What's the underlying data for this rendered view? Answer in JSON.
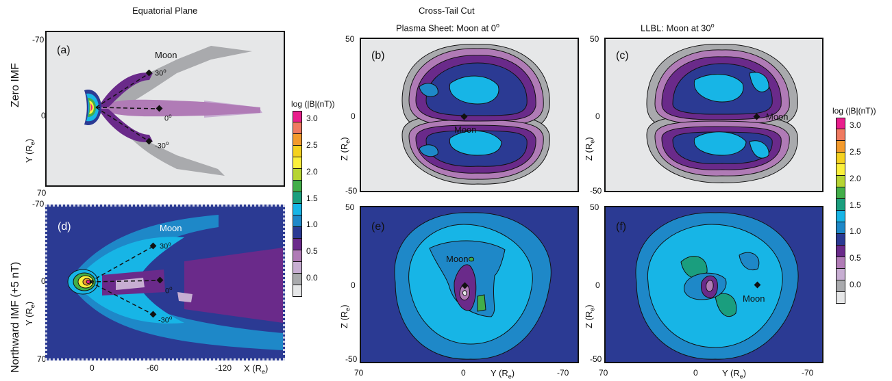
{
  "titles": {
    "equatorial": "Equatorial Plane",
    "cross_tail": "Cross-Tail Cut",
    "plasma_sheet": "Plasma Sheet: Moon at 0",
    "llbl": "LLBL: Moon at 30",
    "degree_sup": "o"
  },
  "row_labels": {
    "zero_imf": "Zero IMF",
    "northward_imf": "Northward IMF (+5 nT)"
  },
  "panels": {
    "a": {
      "label": "(a)",
      "moon": "Moon",
      "ang30": "30",
      "ang0": "0",
      "angm30": "-30",
      "deg": "o"
    },
    "b": {
      "label": "(b)",
      "moon": "Moon"
    },
    "c": {
      "label": "(c)",
      "moon": "Moon"
    },
    "d": {
      "label": "(d)",
      "moon": "Moon",
      "ang30": "30",
      "ang0": "0",
      "angm30": "-30",
      "deg": "o"
    },
    "e": {
      "label": "(e)",
      "moon": "Moon"
    },
    "f": {
      "label": "(f)",
      "moon": "Moon"
    }
  },
  "axes": {
    "y_main": "Y (R",
    "z_main": "Z (R",
    "x_main": "X (R",
    "y_sub": "e",
    "close": ")",
    "eq_y_ticks_top": [
      "-70",
      "0",
      "70"
    ],
    "eq_y_ticks_bottom": [
      "-70",
      "0",
      "70"
    ],
    "eq_x_ticks": [
      "0",
      "-60",
      "-120"
    ],
    "z_ticks": [
      "50",
      "0",
      "-50"
    ],
    "z_ticks_b": [
      "50",
      "0",
      "-50"
    ],
    "cross_x_ticks": [
      "70",
      "0",
      "-70"
    ]
  },
  "colorbar": {
    "title": "log (|B|(nT))",
    "colors": [
      "#e91e8c",
      "#f07a60",
      "#f39a2c",
      "#f5d21f",
      "#fbf03c",
      "#b6d433",
      "#42ae49",
      "#1a9e7e",
      "#17b5e6",
      "#1e88c8",
      "#2b3a93",
      "#6a2a8a",
      "#b07bb6",
      "#c7aed2",
      "#a9aaad",
      "#e6e7e8"
    ],
    "ticks": [
      "3.0",
      "2.5",
      "2.0",
      "1.5",
      "1.0",
      "0.5",
      "0.0"
    ]
  },
  "chart_data": [
    {
      "type": "heatmap",
      "panel": "a",
      "title": "Equatorial Plane",
      "condition": "Zero IMF",
      "xlabel": "X (Re)",
      "ylabel": "Y (Re)",
      "ylim": [
        -70,
        70
      ],
      "quantity": "log(|B|(nT))",
      "moon_positions_deg": [
        30,
        0,
        -30
      ]
    },
    {
      "type": "heatmap",
      "panel": "b",
      "title": "Plasma Sheet: Moon at 0°",
      "condition": "Zero IMF",
      "ylabel": "Z (Re)",
      "ylim": [
        -50,
        50
      ],
      "moon_position": {
        "y": 0,
        "z": 0
      }
    },
    {
      "type": "heatmap",
      "panel": "c",
      "title": "LLBL: Moon at 30°",
      "condition": "Zero IMF",
      "ylabel": "Z (Re)",
      "ylim": [
        -50,
        50
      ],
      "moon_position": {
        "y": -30,
        "z": 0
      }
    },
    {
      "type": "heatmap",
      "panel": "d",
      "title": "Equatorial Plane",
      "condition": "Northward IMF (+5 nT)",
      "xlabel": "X (Re)",
      "ylabel": "Y (Re)",
      "xticks": [
        0,
        -60,
        -120
      ],
      "ylim": [
        -70,
        70
      ],
      "moon_positions_deg": [
        30,
        0,
        -30
      ]
    },
    {
      "type": "heatmap",
      "panel": "e",
      "title": "Plasma Sheet: Moon at 0°",
      "condition": "Northward IMF (+5 nT)",
      "xlabel": "Y (Re)",
      "ylabel": "Z (Re)",
      "xlim": [
        70,
        -70
      ],
      "ylim": [
        -50,
        50
      ],
      "moon_position": {
        "y": 0,
        "z": 0
      }
    },
    {
      "type": "heatmap",
      "panel": "f",
      "title": "LLBL: Moon at 30°",
      "condition": "Northward IMF (+5 nT)",
      "xlabel": "Y (Re)",
      "ylabel": "Z (Re)",
      "xlim": [
        70,
        -70
      ],
      "ylim": [
        -50,
        50
      ],
      "moon_position": {
        "y": -30,
        "z": 0
      }
    },
    {
      "type": "heatmap",
      "role": "colorbar",
      "title": "log (|B|(nT))",
      "levels": [
        3.0,
        2.5,
        2.0,
        1.5,
        1.0,
        0.5,
        0.0
      ]
    }
  ]
}
